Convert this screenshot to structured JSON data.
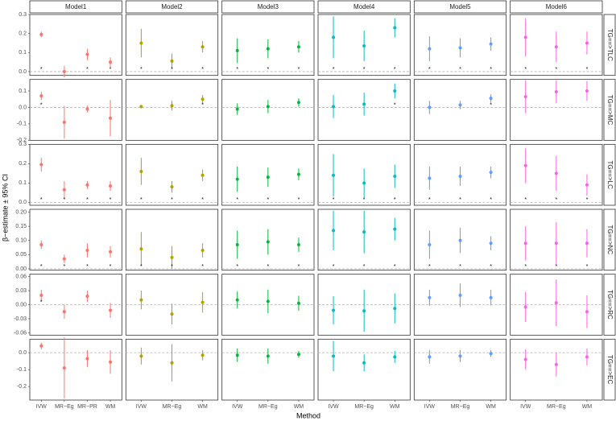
{
  "chart_data": {
    "type": "errorbar",
    "x_label": "Method",
    "y_label": "β−estimate ± 95% CI",
    "facets_x": [
      {
        "name": "Model1",
        "color": "#f8766d",
        "categories": [
          "IVW",
          "MR−Eg",
          "MR−PR",
          "WM"
        ]
      },
      {
        "name": "Model2",
        "color": "#b79f00",
        "categories": [
          "IVW",
          "MR−Eg",
          "WM"
        ]
      },
      {
        "name": "Model3",
        "color": "#00ba38",
        "categories": [
          "IVW",
          "MR−Eg",
          "WM"
        ]
      },
      {
        "name": "Model4",
        "color": "#00bfc4",
        "categories": [
          "IVW",
          "MR−Eg",
          "WM"
        ]
      },
      {
        "name": "Model5",
        "color": "#619cff",
        "categories": [
          "IVW",
          "MR−Eg",
          "WM"
        ]
      },
      {
        "name": "Model6",
        "color": "#f564e3",
        "categories": [
          "IVW",
          "MR−Eg",
          "WM"
        ]
      }
    ],
    "facets_y": [
      {
        "name": "TG==>TLC",
        "ylim": [
          -0.02,
          0.3
        ],
        "yticks": [
          {
            "value": 0,
            "label": "0.0"
          },
          0.1,
          0.2,
          0.3
        ]
      },
      {
        "name": "TG==>MC",
        "ylim": [
          -0.2,
          0.17
        ],
        "yticks": [
          -0.2,
          -0.1,
          {
            "value": 0,
            "label": "0.0"
          },
          0.1
        ]
      },
      {
        "name": "TG==>LC",
        "ylim": [
          -0.015,
          0.3
        ],
        "yticks": [
          {
            "value": 0,
            "label": "0.0"
          },
          0.1,
          0.2,
          0.3
        ]
      },
      {
        "name": "TG==>NC",
        "ylim": [
          -0.005,
          0.21
        ],
        "yticks": [
          {
            "value": 0,
            "label": "0.00"
          },
          0.05,
          {
            "value": 0.1,
            "label": "0.10"
          },
          0.15,
          {
            "value": 0.2,
            "label": "0.20"
          }
        ]
      },
      {
        "name": "TG==>RC",
        "ylim": [
          -0.065,
          0.065
        ],
        "yticks": [
          -0.06,
          -0.03,
          {
            "value": 0,
            "label": "0.00"
          },
          0.03,
          0.06
        ]
      },
      {
        "name": "TG==>EC",
        "ylim": [
          -0.28,
          0.08
        ],
        "yticks": [
          -0.2,
          -0.1,
          {
            "value": 0,
            "label": "0.0"
          }
        ]
      }
    ],
    "panels": [
      [
        {
          "values": [
            0.195,
            0.0,
            0.09,
            0.05
          ],
          "errors": [
            0.015,
            0.03,
            0.03,
            0.025
          ],
          "labels": [
            "*",
            null,
            "*",
            "*"
          ]
        },
        {
          "values": [
            0.15,
            0.055,
            0.13
          ],
          "errors": [
            0.075,
            0.04,
            0.03
          ],
          "labels": [
            "*",
            "*",
            "*"
          ]
        },
        {
          "values": [
            0.11,
            0.12,
            0.13
          ],
          "errors": [
            0.065,
            0.05,
            0.03
          ],
          "labels": [
            "*",
            "*",
            "*"
          ]
        },
        {
          "values": [
            0.18,
            0.135,
            0.23
          ],
          "errors": [
            0.11,
            0.08,
            0.05
          ],
          "labels": [
            "*",
            "*",
            "*"
          ]
        },
        {
          "values": [
            0.12,
            0.125,
            0.145
          ],
          "errors": [
            0.065,
            0.05,
            0.035
          ],
          "labels": [
            "*",
            "*",
            "*"
          ]
        },
        {
          "values": [
            0.18,
            0.13,
            0.15
          ],
          "errors": [
            0.1,
            0.08,
            0.06
          ],
          "labels": [
            "*",
            "*",
            "*"
          ]
        }
      ],
      [
        {
          "values": [
            0.07,
            -0.09,
            -0.01,
            -0.065
          ],
          "errors": [
            0.025,
            0.1,
            0.02,
            0.11
          ],
          "labels": [
            "*",
            null,
            null,
            null
          ]
        },
        {
          "values": [
            0.005,
            0.01,
            0.05
          ],
          "errors": [
            0.01,
            0.03,
            0.025
          ],
          "labels": [
            null,
            null,
            "*"
          ]
        },
        {
          "values": [
            -0.01,
            0.005,
            0.03
          ],
          "errors": [
            0.035,
            0.04,
            0.025
          ],
          "labels": [
            null,
            null,
            null
          ]
        },
        {
          "values": [
            0.005,
            0.02,
            0.1
          ],
          "errors": [
            0.07,
            0.07,
            0.045
          ],
          "labels": [
            null,
            null,
            "*"
          ]
        },
        {
          "values": [
            0.0,
            0.015,
            0.055
          ],
          "errors": [
            0.04,
            0.025,
            0.025
          ],
          "labels": [
            null,
            null,
            "*"
          ]
        },
        {
          "values": [
            0.065,
            0.095,
            0.1
          ],
          "errors": [
            0.1,
            0.07,
            0.06
          ],
          "labels": [
            null,
            null,
            null
          ]
        }
      ],
      [
        {
          "values": [
            0.195,
            0.065,
            0.09,
            0.085
          ],
          "errors": [
            0.035,
            0.045,
            0.02,
            0.025
          ],
          "labels": [
            "*",
            "*",
            "*",
            "*"
          ]
        },
        {
          "values": [
            0.16,
            0.08,
            0.14
          ],
          "errors": [
            0.07,
            0.03,
            0.03
          ],
          "labels": [
            "*",
            "*",
            "*"
          ]
        },
        {
          "values": [
            0.12,
            0.13,
            0.145
          ],
          "errors": [
            0.065,
            0.05,
            0.03
          ],
          "labels": [
            "*",
            "*",
            "*"
          ]
        },
        {
          "values": [
            0.14,
            0.1,
            0.135
          ],
          "errors": [
            0.11,
            0.075,
            0.06
          ],
          "labels": [
            "*",
            "*",
            "*"
          ]
        },
        {
          "values": [
            0.125,
            0.135,
            0.155
          ],
          "errors": [
            0.06,
            0.05,
            0.03
          ],
          "labels": [
            "*",
            "*",
            "*"
          ]
        },
        {
          "values": [
            0.19,
            0.15,
            0.09
          ],
          "errors": [
            0.09,
            0.09,
            0.055
          ],
          "labels": [
            "*",
            "*",
            "*"
          ]
        }
      ],
      [
        {
          "values": [
            0.085,
            0.035,
            0.065,
            0.06
          ],
          "errors": [
            0.015,
            0.015,
            0.025,
            0.02
          ],
          "labels": [
            "*",
            "*",
            "*",
            "*"
          ]
        },
        {
          "values": [
            0.07,
            0.04,
            0.065
          ],
          "errors": [
            0.06,
            0.04,
            0.025
          ],
          "labels": [
            "*",
            "*",
            "*"
          ]
        },
        {
          "values": [
            0.085,
            0.095,
            0.085
          ],
          "errors": [
            0.05,
            0.045,
            0.025
          ],
          "labels": [
            "*",
            "*",
            "*"
          ]
        },
        {
          "values": [
            0.135,
            0.13,
            0.14
          ],
          "errors": [
            0.07,
            0.075,
            0.04
          ],
          "labels": [
            "*",
            "*",
            "*"
          ]
        },
        {
          "values": [
            0.085,
            0.1,
            0.09
          ],
          "errors": [
            0.05,
            0.045,
            0.025
          ],
          "labels": [
            "*",
            "*",
            "*"
          ]
        },
        {
          "values": [
            0.09,
            0.09,
            0.09
          ],
          "errors": [
            0.06,
            0.075,
            0.05
          ],
          "labels": [
            "*",
            "*",
            "*"
          ]
        }
      ],
      [
        {
          "values": [
            0.02,
            -0.015,
            0.018,
            -0.012
          ],
          "errors": [
            0.012,
            0.015,
            0.012,
            0.016
          ],
          "labels": [
            "*",
            null,
            null,
            null
          ]
        },
        {
          "values": [
            0.01,
            -0.02,
            0.005
          ],
          "errors": [
            0.02,
            0.022,
            0.022
          ],
          "labels": [
            null,
            null,
            null
          ]
        },
        {
          "values": [
            0.01,
            0.007,
            0.003
          ],
          "errors": [
            0.018,
            0.025,
            0.016
          ],
          "labels": [
            null,
            null,
            null
          ]
        },
        {
          "values": [
            -0.012,
            -0.013,
            -0.008
          ],
          "errors": [
            0.03,
            0.045,
            0.032
          ],
          "labels": [
            null,
            null,
            null
          ]
        },
        {
          "values": [
            0.015,
            0.02,
            0.015
          ],
          "errors": [
            0.017,
            0.025,
            0.017
          ],
          "labels": [
            null,
            null,
            null
          ]
        },
        {
          "values": [
            -0.005,
            0.004,
            -0.015
          ],
          "errors": [
            0.032,
            0.05,
            0.035
          ],
          "labels": [
            null,
            null,
            null
          ]
        }
      ],
      [
        {
          "values": [
            0.04,
            -0.09,
            -0.035,
            -0.055
          ],
          "errors": [
            0.02,
            0.18,
            0.05,
            0.07
          ],
          "labels": [
            null,
            null,
            null,
            null
          ]
        },
        {
          "values": [
            -0.02,
            -0.06,
            -0.015
          ],
          "errors": [
            0.05,
            0.11,
            0.03
          ],
          "labels": [
            null,
            null,
            null
          ]
        },
        {
          "values": [
            -0.015,
            -0.02,
            -0.01
          ],
          "errors": [
            0.04,
            0.045,
            0.02
          ],
          "labels": [
            null,
            null,
            null
          ]
        },
        {
          "values": [
            -0.02,
            -0.06,
            -0.025
          ],
          "errors": [
            0.09,
            0.05,
            0.035
          ],
          "labels": [
            null,
            null,
            null
          ]
        },
        {
          "values": [
            -0.025,
            -0.02,
            -0.005
          ],
          "errors": [
            0.04,
            0.035,
            0.02
          ],
          "labels": [
            null,
            null,
            null
          ]
        },
        {
          "values": [
            -0.04,
            -0.07,
            -0.025
          ],
          "errors": [
            0.06,
            0.07,
            0.05
          ],
          "labels": [
            null,
            null,
            null
          ]
        }
      ]
    ]
  }
}
